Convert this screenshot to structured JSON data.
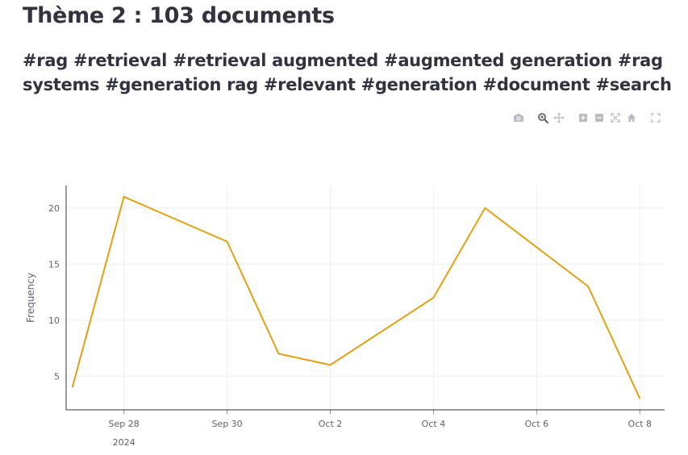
{
  "title": "Thème 2 : 103 documents",
  "keywords": "#rag #retrieval #retrieval augmented #augmented generation #rag systems #generation rag #relevant #generation #document #search",
  "modebar": {
    "buttons": [
      {
        "name": "download-plot-button",
        "icon": "camera-icon"
      },
      {
        "name": "zoom-button",
        "icon": "zoom-icon"
      },
      {
        "name": "pan-button",
        "icon": "pan-icon"
      },
      {
        "name": "zoom-in-button",
        "icon": "zoom-in-icon"
      },
      {
        "name": "zoom-out-button",
        "icon": "zoom-out-icon"
      },
      {
        "name": "autoscale-button",
        "icon": "autoscale-icon"
      },
      {
        "name": "reset-axes-button",
        "icon": "home-icon"
      },
      {
        "name": "fullscreen-button",
        "icon": "fullscreen-icon"
      }
    ]
  },
  "chart_data": {
    "type": "line",
    "title": "",
    "xlabel": "",
    "ylabel": "Frequency",
    "x": [
      "2024-09-27",
      "2024-09-28",
      "2024-09-30",
      "2024-10-01",
      "2024-10-02",
      "2024-10-04",
      "2024-10-05",
      "2024-10-07",
      "2024-10-08"
    ],
    "x_display": [
      "Sep 27",
      "Sep 28",
      "Sep 30",
      "Oct 1",
      "Oct 2",
      "Oct 4",
      "Oct 5",
      "Oct 7",
      "Oct 8"
    ],
    "series": [
      {
        "values": [
          4,
          21,
          17,
          7,
          6,
          12,
          20,
          13,
          3
        ],
        "color": "#e0a213"
      }
    ],
    "xticks": [
      "Sep 28",
      "Sep 30",
      "Oct 2",
      "Oct 4",
      "Oct 6",
      "Oct 8"
    ],
    "xtick_year": "2024",
    "yticks": [
      5,
      10,
      15,
      20
    ],
    "ylim": [
      2,
      22
    ],
    "grid": true,
    "legend": "none"
  }
}
